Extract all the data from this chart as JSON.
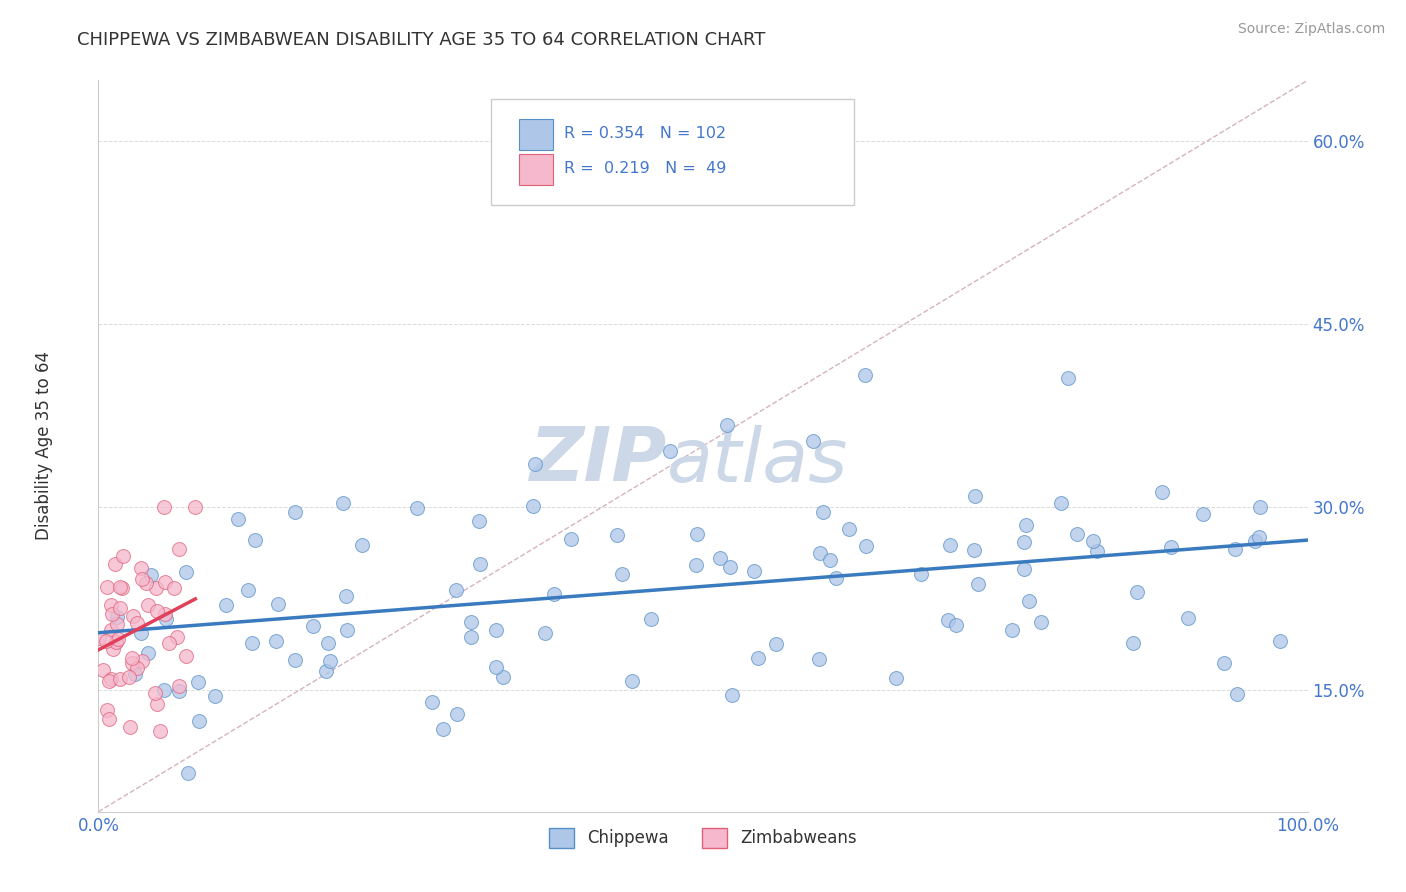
{
  "title": "CHIPPEWA VS ZIMBABWEAN DISABILITY AGE 35 TO 64 CORRELATION CHART",
  "source_text": "Source: ZipAtlas.com",
  "ylabel": "Disability Age 35 to 64",
  "xlim": [
    0.0,
    1.0
  ],
  "ylim": [
    0.05,
    0.65
  ],
  "x_ticks": [
    0.0,
    0.2,
    0.4,
    0.6,
    0.8,
    1.0
  ],
  "x_tick_labels": [
    "0.0%",
    "",
    "",
    "",
    "",
    "100.0%"
  ],
  "y_ticks": [
    0.15,
    0.3,
    0.45,
    0.6
  ],
  "y_tick_labels": [
    "15.0%",
    "30.0%",
    "45.0%",
    "60.0%"
  ],
  "chippewa_color": "#aec6e8",
  "chippewa_edge_color": "#5590c8",
  "zimbabwean_color": "#f5b8cc",
  "zimbabwean_edge_color": "#e0607a",
  "trend_chippewa_color": "#3a7abf",
  "trend_zimbabwean_color": "#e0405a",
  "diag_line_color": "#d0aabb",
  "watermark_color": "#ccd8e8",
  "R_chippewa": 0.354,
  "N_chippewa": 102,
  "R_zimbabwean": 0.219,
  "N_zimbabwean": 49,
  "legend_labels": [
    "Chippewa",
    "Zimbabweans"
  ],
  "background_color": "#ffffff",
  "grid_color": "#cccccc",
  "title_color": "#333333",
  "tick_color": "#4477cc",
  "source_color": "#999999"
}
